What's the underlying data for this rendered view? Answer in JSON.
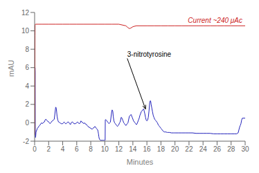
{
  "chart_data": {
    "type": "line",
    "title": "",
    "xlabel": "Minutes",
    "ylabel": "mAU",
    "xlim": [
      0,
      30
    ],
    "ylim": [
      -2,
      12
    ],
    "xticks": [
      0,
      2,
      4,
      6,
      8,
      10,
      12,
      14,
      16,
      18,
      20,
      22,
      24,
      26,
      28,
      30
    ],
    "yticks": [
      -2,
      0,
      2,
      4,
      6,
      8,
      10,
      12
    ],
    "series": [
      {
        "color": "#2222bb",
        "x": [
          0.0,
          0.03,
          0.06,
          0.08,
          0.09,
          0.1,
          0.12,
          0.15,
          0.2,
          0.3,
          0.4,
          0.5,
          0.6,
          0.7,
          0.8,
          0.9,
          1.0,
          1.1,
          1.2,
          1.4,
          1.5,
          1.6,
          1.7,
          1.8,
          2.0,
          2.1,
          2.2,
          2.3,
          2.5,
          2.7,
          2.8,
          3.0,
          3.05,
          3.1,
          3.2,
          3.3,
          3.4,
          3.6,
          3.8,
          4.0,
          4.1,
          4.2,
          4.3,
          4.4,
          4.5,
          4.6,
          4.8,
          5.0,
          5.1,
          5.2,
          5.4,
          5.5,
          5.6,
          5.8,
          6.0,
          6.1,
          6.2,
          6.4,
          6.5,
          6.6,
          6.7,
          6.9,
          7.0,
          7.1,
          7.2,
          7.4,
          7.5,
          7.6,
          7.8,
          8.0,
          8.2,
          8.3,
          8.5,
          8.6,
          8.7,
          8.8,
          8.9,
          9.0,
          9.05,
          9.1,
          9.15,
          9.2,
          9.25,
          9.3,
          9.4,
          9.5,
          9.6,
          9.7,
          9.75,
          9.8,
          9.85,
          9.9,
          9.95,
          10.0,
          10.02,
          10.05,
          10.07,
          10.1,
          10.2,
          10.3,
          10.4,
          10.5,
          10.6,
          10.7,
          10.8,
          11.0,
          11.05,
          11.1,
          11.15,
          11.2,
          11.3,
          11.4,
          11.5,
          11.6,
          11.7,
          11.8,
          11.9,
          12.0,
          12.1,
          12.2,
          12.3,
          12.35,
          12.4,
          12.5,
          12.6,
          12.7,
          12.8,
          12.9,
          13.0,
          13.1,
          13.2,
          13.3,
          13.5,
          13.6,
          13.7,
          13.75,
          13.8,
          13.9,
          14.0,
          14.1,
          14.2,
          14.3,
          14.4,
          14.5,
          14.6,
          14.7,
          14.8,
          14.9,
          15.0,
          15.1,
          15.2,
          15.3,
          15.4,
          15.5,
          15.55,
          15.6,
          15.7,
          15.8,
          15.9,
          16.0,
          16.1,
          16.2,
          16.3,
          16.4,
          16.45,
          16.5,
          16.55,
          16.6,
          16.7,
          16.8,
          16.9,
          17.0,
          17.1,
          17.2,
          17.3,
          17.4,
          17.5,
          17.6,
          17.7,
          17.8,
          17.9,
          18.0,
          18.1,
          18.2,
          18.3,
          18.5,
          18.7,
          18.9,
          19.0,
          19.2,
          19.5,
          19.8,
          20.0,
          20.5,
          21.0,
          21.5,
          22.0,
          22.5,
          23.0,
          23.5,
          24.0,
          24.5,
          25.0,
          25.5,
          26.0,
          26.5,
          27.0,
          27.5,
          28.0,
          28.5,
          28.8,
          28.9,
          29.0,
          29.1,
          29.2,
          29.3,
          29.4,
          29.5,
          29.6,
          29.7,
          29.8,
          30.0
        ],
        "values": [
          -1.3,
          -1.1,
          6.0,
          5.5,
          -0.7,
          -1.5,
          -1.6,
          -1.5,
          -1.0,
          -0.8,
          -0.6,
          -0.5,
          -0.4,
          -0.3,
          -0.2,
          -0.1,
          0.0,
          -0.1,
          0.0,
          0.1,
          0.3,
          0.4,
          0.3,
          0.2,
          0.1,
          0.0,
          -0.1,
          0.0,
          0.2,
          0.3,
          0.4,
          1.7,
          1.65,
          1.5,
          0.7,
          0.3,
          0.1,
          0.0,
          -0.1,
          -0.1,
          0.0,
          0.1,
          0.0,
          -0.1,
          -0.1,
          0.0,
          0.1,
          -0.1,
          -0.2,
          0.0,
          0.1,
          0.0,
          -0.1,
          -0.1,
          0.0,
          0.1,
          0.0,
          -0.1,
          0.0,
          0.2,
          0.1,
          0.0,
          -0.1,
          0.0,
          -0.1,
          -0.2,
          -0.3,
          -0.4,
          -0.5,
          -0.6,
          -0.7,
          -0.6,
          -0.5,
          -0.4,
          -0.5,
          -0.6,
          -0.7,
          -0.8,
          -1.0,
          -1.2,
          -1.5,
          -1.7,
          -1.8,
          -1.85,
          -1.9,
          -1.9,
          -1.9,
          -1.9,
          -1.9,
          -1.9,
          -1.9,
          -1.9,
          -1.9,
          -1.9,
          -1.9,
          -1.9,
          0.3,
          0.35,
          0.3,
          0.2,
          0.1,
          0.0,
          -0.1,
          0.0,
          0.1,
          1.3,
          1.4,
          1.35,
          1.2,
          0.7,
          0.2,
          0.0,
          -0.1,
          -0.2,
          -0.3,
          -0.4,
          -0.3,
          -0.2,
          0.0,
          0.1,
          0.5,
          0.6,
          0.55,
          0.4,
          0.2,
          0.0,
          -0.1,
          -0.2,
          -0.3,
          -0.2,
          -0.1,
          0.0,
          0.7,
          0.8,
          0.85,
          0.9,
          0.8,
          0.6,
          0.4,
          0.2,
          0.1,
          0.0,
          -0.1,
          -0.2,
          -0.1,
          0.1,
          0.3,
          0.5,
          0.8,
          1.0,
          1.2,
          1.3,
          1.4,
          1.5,
          1.5,
          1.3,
          1.0,
          0.6,
          0.3,
          0.2,
          0.3,
          0.6,
          1.3,
          2.2,
          2.35,
          2.4,
          2.3,
          2.0,
          1.6,
          1.2,
          0.8,
          0.6,
          0.4,
          0.3,
          0.2,
          0.1,
          0.0,
          -0.2,
          -0.3,
          -0.4,
          -0.5,
          -0.6,
          -0.7,
          -0.8,
          -0.9,
          -1.0,
          -1.0,
          -1.05,
          -1.05,
          -1.05,
          -1.1,
          -1.1,
          -1.1,
          -1.1,
          -1.1,
          -1.1,
          -1.1,
          -1.1,
          -1.15,
          -1.15,
          -1.15,
          -1.15,
          -1.15,
          -1.2,
          -1.2,
          -1.2,
          -1.2,
          -1.2,
          -1.2,
          -1.2,
          -1.2,
          -1.15,
          -1.1,
          -0.8,
          -0.5,
          -0.3,
          -0.1,
          0.3,
          0.5,
          0.5,
          0.5,
          0.5
        ]
      },
      {
        "color": "#cc2222",
        "x": [
          0.0,
          0.02,
          0.04,
          0.06,
          0.07,
          0.08,
          0.1,
          0.15,
          0.2,
          0.5,
          1.0,
          2.0,
          3.0,
          4.0,
          5.0,
          6.0,
          7.0,
          8.0,
          9.0,
          10.0,
          11.0,
          12.0,
          13.0,
          13.3,
          13.5,
          13.7,
          14.0,
          14.5,
          15.0,
          16.0,
          17.0,
          18.0,
          19.0,
          20.0,
          21.0,
          22.0,
          23.0,
          24.0,
          25.0,
          26.0,
          27.0,
          28.0,
          29.0,
          30.0
        ],
        "values": [
          -1.3,
          -0.5,
          3.0,
          9.5,
          10.6,
          10.7,
          10.72,
          10.72,
          10.72,
          10.72,
          10.72,
          10.72,
          10.72,
          10.72,
          10.72,
          10.72,
          10.72,
          10.72,
          10.72,
          10.72,
          10.72,
          10.72,
          10.55,
          10.35,
          10.25,
          10.3,
          10.45,
          10.55,
          10.55,
          10.55,
          10.55,
          10.55,
          10.55,
          10.55,
          10.55,
          10.55,
          10.55,
          10.55,
          10.55,
          10.55,
          10.55,
          10.55,
          10.55,
          10.55
        ]
      }
    ],
    "annotations": [
      {
        "text": "Current ~240 μAc",
        "x": 29.6,
        "y": 11.5,
        "color": "#cc2222"
      },
      {
        "text": "3-nitrotyrosine",
        "xy": [
          15.8,
          1.5
        ],
        "xytext": [
          13.2,
          7.0
        ]
      }
    ]
  }
}
